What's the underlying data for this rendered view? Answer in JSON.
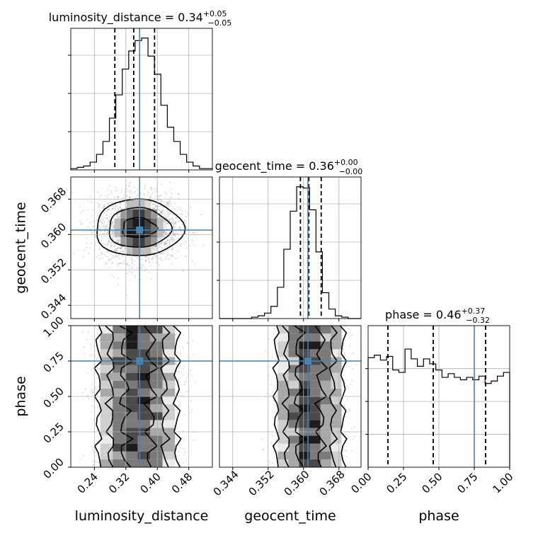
{
  "chart_data": {
    "type": "corner",
    "truth_color": "#4682b4",
    "parameters": [
      {
        "name": "luminosity_distance",
        "label": "luminosity_distance",
        "range": [
          0.18,
          0.54
        ],
        "ticks": [
          "0.24",
          "0.32",
          "0.40",
          "0.48"
        ],
        "tick_values": [
          0.24,
          0.32,
          0.4,
          0.48
        ],
        "truth": 0.355,
        "quantiles": [
          0.292,
          0.34,
          0.393
        ],
        "title": {
          "main": "luminosity_distance = 0.34",
          "sup": "+0.05",
          "sub": "−0.05"
        },
        "hist": [
          1,
          2,
          3,
          6,
          12,
          22,
          40,
          58,
          78,
          92,
          100,
          102,
          88,
          74,
          50,
          33,
          22,
          12,
          6,
          3,
          1,
          1
        ]
      },
      {
        "name": "geocent_time",
        "label": "geocent_time",
        "range": [
          0.341,
          0.373
        ],
        "ticks": [
          "0.344",
          "0.352",
          "0.360",
          "0.368"
        ],
        "tick_values": [
          0.344,
          0.352,
          0.36,
          0.368
        ],
        "truth": 0.361,
        "quantiles": [
          0.3593,
          0.3612,
          0.364
        ],
        "title": {
          "main": "geocent_time = 0.36",
          "sup": "+0.00",
          "sub": "−0.00"
        },
        "hist": [
          0,
          0,
          0,
          0,
          0,
          1,
          2,
          4,
          9,
          23,
          51,
          79,
          97,
          96,
          80,
          49,
          19,
          7,
          2,
          1,
          0,
          0
        ]
      },
      {
        "name": "phase",
        "label": "phase",
        "range": [
          0.0,
          1.0
        ],
        "ticks": [
          "0.00",
          "0.25",
          "0.50",
          "0.75",
          "1.00"
        ],
        "tick_values": [
          0.0,
          0.25,
          0.5,
          0.75,
          1.0
        ],
        "truth": 0.75,
        "quantiles": [
          0.14,
          0.46,
          0.83
        ],
        "title": {
          "main": "phase = 0.46",
          "sup": "+0.37",
          "sub": "−0.32"
        },
        "hist": [
          89,
          91,
          87,
          90,
          79,
          77,
          96,
          88,
          82,
          88,
          84,
          79,
          73,
          76,
          73,
          71,
          73,
          71,
          74,
          68,
          70,
          74,
          77
        ]
      }
    ]
  }
}
